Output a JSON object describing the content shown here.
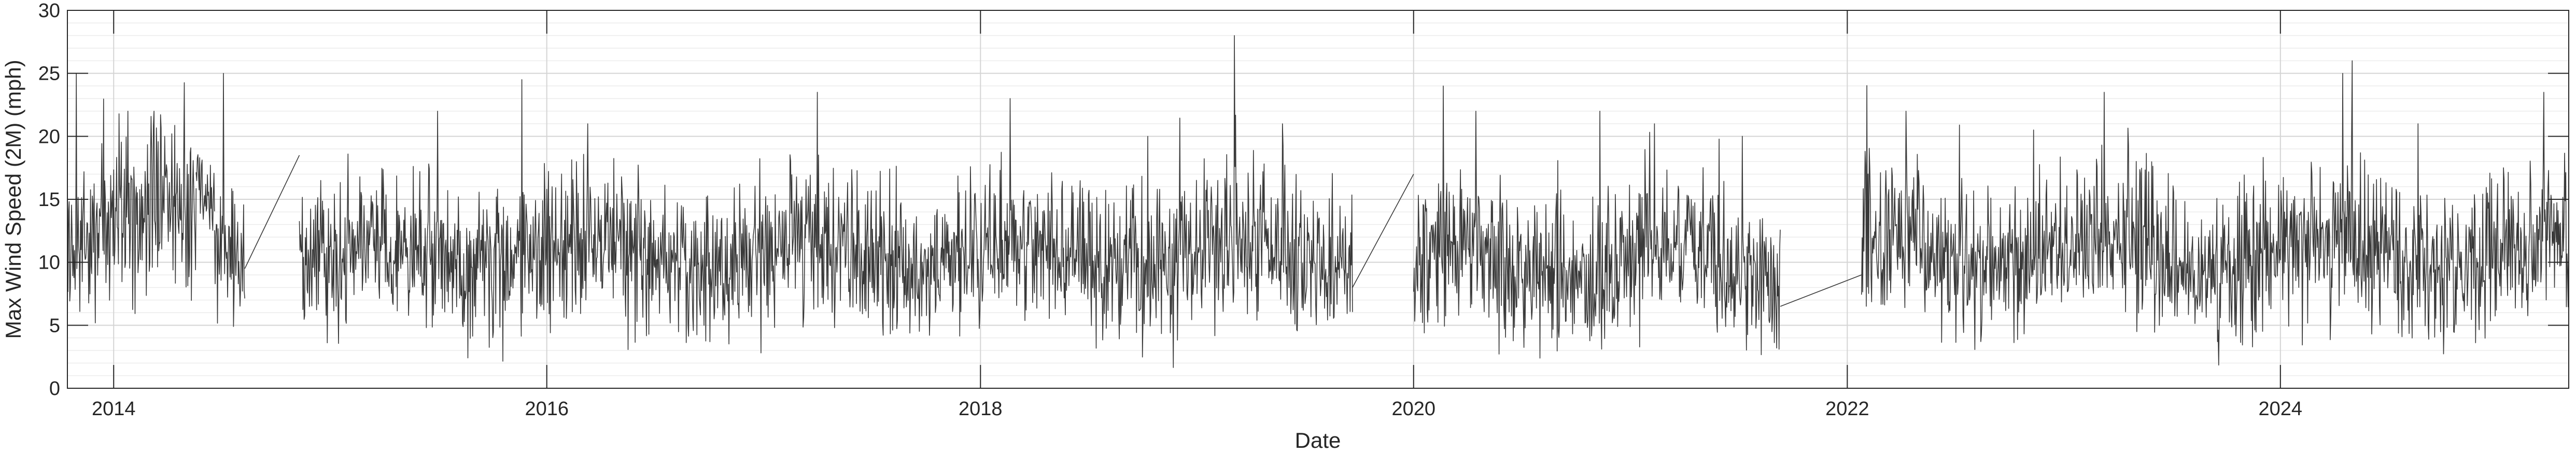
{
  "chart_data": {
    "type": "line",
    "title": "",
    "xlabel": "Date",
    "ylabel": "Max Wind Speed (2M) (mph)",
    "xlim": [
      "2013-10-15",
      "2025-05-01"
    ],
    "ylim": [
      0,
      30
    ],
    "x_ticks": [
      "2014",
      "2016",
      "2018",
      "2020",
      "2022",
      "2024"
    ],
    "y_ticks": [
      "0",
      "5",
      "10",
      "15",
      "20",
      "25",
      "30"
    ],
    "grid": true,
    "minor_grid_y": true,
    "line_color": "#3a3a3a",
    "series": [
      {
        "name": "",
        "segments": [
          {
            "start": "2013-10-15",
            "end": "2014-05-20",
            "mean": 13,
            "amp": 5,
            "peaks": [
              [
                "2013-10-30",
                25
              ],
              [
                "2014-01-25",
                22
              ],
              [
                "2014-03-10",
                22
              ]
            ]
          },
          {
            "start": "2014-05-20",
            "end": "2014-06-20",
            "mean": 15,
            "amp": 2,
            "peaks": []
          },
          {
            "start": "2014-06-20",
            "end": "2014-08-10",
            "mean": 11,
            "amp": 4,
            "peaks": [
              [
                "2014-07-05",
                25
              ]
            ]
          },
          {
            "start": "2014-11-10",
            "end": "2019-09-20",
            "mean": 10.5,
            "amp": 4.5,
            "peaks": [
              [
                "2015-07-01",
                22
              ],
              [
                "2015-11-20",
                24.5
              ],
              [
                "2016-03-10",
                21
              ],
              [
                "2017-04-01",
                23.5
              ],
              [
                "2018-02-20",
                23
              ],
              [
                "2018-10-10",
                20
              ],
              [
                "2019-03-05",
                28
              ],
              [
                "2019-05-25",
                21
              ]
            ]
          },
          {
            "start": "2020-01-01",
            "end": "2021-09-10",
            "mean": 10,
            "amp": 4.5,
            "peaks": [
              [
                "2020-02-20",
                24
              ],
              [
                "2020-04-15",
                22
              ],
              [
                "2020-11-10",
                22
              ],
              [
                "2021-02-10",
                21
              ]
            ]
          },
          {
            "start": "2022-01-25",
            "end": "2025-05-01",
            "mean": 10.5,
            "amp": 4.5,
            "peaks": [
              [
                "2022-04-10",
                22
              ],
              [
                "2023-03-10",
                23.5
              ],
              [
                "2024-04-15",
                25
              ],
              [
                "2024-05-01",
                26
              ],
              [
                "2024-08-20",
                21
              ],
              [
                "2025-03-20",
                23.5
              ]
            ]
          }
        ],
        "connectors": [
          [
            [
              "2014-08-10",
              9.5
            ],
            [
              "2014-11-10",
              18.5
            ]
          ],
          [
            [
              "2019-09-20",
              8
            ],
            [
              "2020-01-01",
              17
            ]
          ],
          [
            [
              "2021-09-10",
              6.5
            ],
            [
              "2022-01-25",
              9
            ]
          ]
        ]
      }
    ]
  }
}
